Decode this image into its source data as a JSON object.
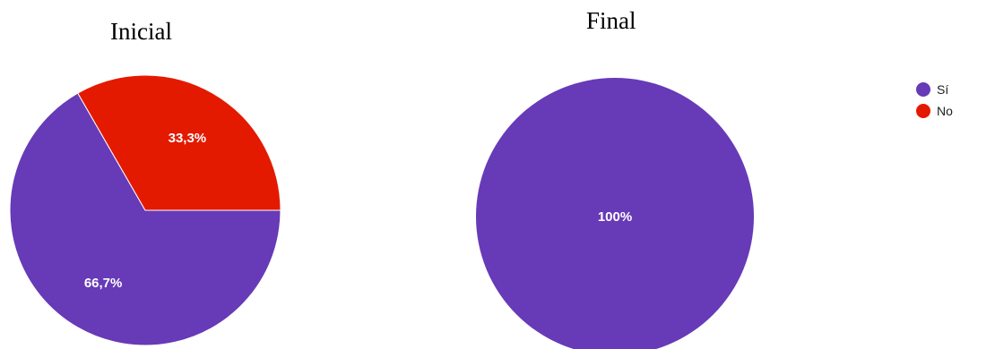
{
  "chart_data": [
    {
      "type": "pie",
      "title": "Inicial",
      "slices": [
        {
          "label": "Sí",
          "value": 66.7,
          "display": "66,7%",
          "color": "#673ab7"
        },
        {
          "label": "No",
          "value": 33.3,
          "display": "33,3%",
          "color": "#e31a00"
        }
      ]
    },
    {
      "type": "pie",
      "title": "Final",
      "slices": [
        {
          "label": "Sí",
          "value": 100,
          "display": "100%",
          "color": "#673ab7"
        },
        {
          "label": "No",
          "value": 0,
          "display": "",
          "color": "#e31a00"
        }
      ]
    }
  ],
  "legend": {
    "placement": "top-right",
    "items": [
      {
        "label": "Sí",
        "color": "#673ab7"
      },
      {
        "label": "No",
        "color": "#e31a00"
      }
    ]
  }
}
